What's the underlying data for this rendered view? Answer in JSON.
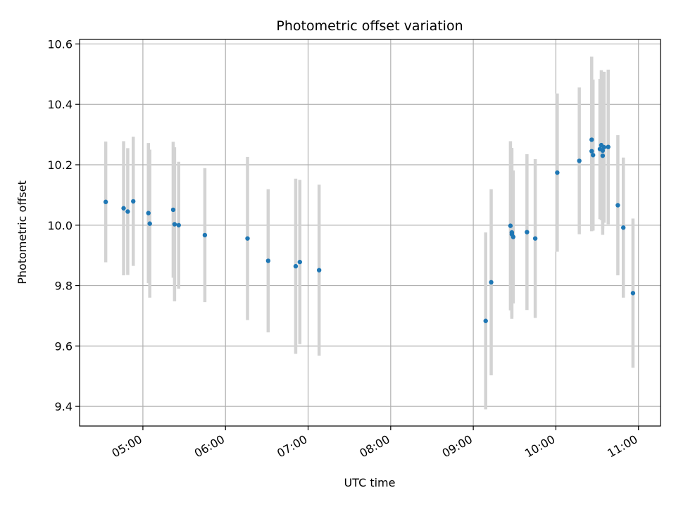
{
  "chart_data": {
    "type": "scatter",
    "title": "Photometric offset variation",
    "xlabel": "UTC time",
    "ylabel": "Photometric offset",
    "x_ticks": [
      "05:00",
      "06:00",
      "07:00",
      "08:00",
      "09:00",
      "10:00",
      "11:00"
    ],
    "y_ticks": [
      "9.4",
      "9.6",
      "9.8",
      "10.0",
      "10.2",
      "10.4",
      "10.6"
    ],
    "xlim": [
      "04:14",
      "11:16"
    ],
    "ylim": [
      9.335,
      10.615
    ],
    "grid": true,
    "marker_color": "#1f77b4",
    "errorbar_color": "#d3d3d3",
    "points": [
      {
        "t": "04:33",
        "y": 10.077,
        "err": 0.2
      },
      {
        "t": "04:46",
        "y": 10.056,
        "err": 0.222
      },
      {
        "t": "04:49",
        "y": 10.045,
        "err": 0.21
      },
      {
        "t": "04:53",
        "y": 10.079,
        "err": 0.214
      },
      {
        "t": "05:04",
        "y": 10.04,
        "err": 0.232
      },
      {
        "t": "05:05",
        "y": 10.005,
        "err": 0.245
      },
      {
        "t": "05:22",
        "y": 10.051,
        "err": 0.225
      },
      {
        "t": "05:23",
        "y": 10.003,
        "err": 0.255
      },
      {
        "t": "05:26",
        "y": 10.0,
        "err": 0.21
      },
      {
        "t": "05:45",
        "y": 9.967,
        "err": 0.222
      },
      {
        "t": "06:16",
        "y": 9.956,
        "err": 0.27
      },
      {
        "t": "06:31",
        "y": 9.882,
        "err": 0.237
      },
      {
        "t": "06:51",
        "y": 9.864,
        "err": 0.29
      },
      {
        "t": "06:54",
        "y": 9.878,
        "err": 0.272
      },
      {
        "t": "07:08",
        "y": 9.851,
        "err": 0.283
      },
      {
        "t": "09:09",
        "y": 9.683,
        "err": 0.293
      },
      {
        "t": "09:13",
        "y": 9.811,
        "err": 0.308
      },
      {
        "t": "09:27",
        "y": 9.998,
        "err": 0.28
      },
      {
        "t": "09:28",
        "y": 9.976,
        "err": 0.28
      },
      {
        "t": "09:28",
        "y": 9.97,
        "err": 0.28
      },
      {
        "t": "09:29",
        "y": 9.961,
        "err": 0.22
      },
      {
        "t": "09:39",
        "y": 9.977,
        "err": 0.258
      },
      {
        "t": "09:45",
        "y": 9.956,
        "err": 0.263
      },
      {
        "t": "10:01",
        "y": 10.174,
        "err": 0.262
      },
      {
        "t": "10:17",
        "y": 10.213,
        "err": 0.243
      },
      {
        "t": "10:26",
        "y": 10.283,
        "err": 0.275
      },
      {
        "t": "10:26",
        "y": 10.245,
        "err": 0.265
      },
      {
        "t": "10:27",
        "y": 10.232,
        "err": 0.25
      },
      {
        "t": "10:32",
        "y": 10.252,
        "err": 0.232
      },
      {
        "t": "10:33",
        "y": 10.265,
        "err": 0.248
      },
      {
        "t": "10:34",
        "y": 10.247,
        "err": 0.258
      },
      {
        "t": "10:34",
        "y": 10.23,
        "err": 0.262
      },
      {
        "t": "10:35",
        "y": 10.258,
        "err": 0.25
      },
      {
        "t": "10:38",
        "y": 10.259,
        "err": 0.256
      },
      {
        "t": "10:45",
        "y": 10.066,
        "err": 0.232
      },
      {
        "t": "10:49",
        "y": 9.992,
        "err": 0.232
      },
      {
        "t": "10:56",
        "y": 9.775,
        "err": 0.247
      }
    ]
  }
}
